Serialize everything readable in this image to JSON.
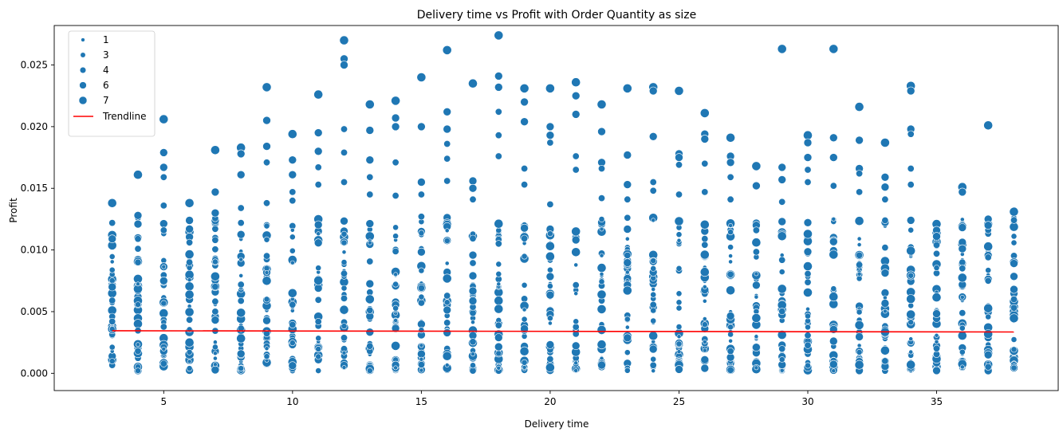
{
  "chart_data": {
    "type": "scatter",
    "title": "Delivery time vs Profit with Order Quantity as size",
    "xlabel": "Delivery time",
    "ylabel": "Profit",
    "xlim": [
      0.75,
      39.75
    ],
    "ylim": [
      -0.0014,
      0.0282
    ],
    "xticks": [
      5,
      10,
      15,
      20,
      25,
      30,
      35
    ],
    "xtick_labels": [
      "5",
      "10",
      "15",
      "20",
      "25",
      "30",
      "35"
    ],
    "yticks": [
      0.0,
      0.005,
      0.01,
      0.015,
      0.02,
      0.025
    ],
    "ytick_labels": [
      "0.000",
      "0.005",
      "0.010",
      "0.015",
      "0.020",
      "0.025"
    ],
    "grid": false,
    "legend_position": "upper-left",
    "point_color": "#1f77b4",
    "trend_color": "#ff0000",
    "size_legend": [
      "1",
      "3",
      "4",
      "6",
      "7"
    ],
    "trendline": {
      "name": "Trendline",
      "x": [
        3,
        38
      ],
      "y": [
        0.00345,
        0.00335
      ]
    },
    "columns": [
      {
        "x": 3,
        "ymax": 0.0138,
        "highlights": [
          0.0138,
          0.0109,
          0.007,
          0.0059,
          0.0046,
          0.0042
        ]
      },
      {
        "x": 4,
        "ymax": 0.0161,
        "highlights": [
          0.0161,
          0.0128,
          0.0121,
          0.0109,
          0.0101,
          0.009
        ]
      },
      {
        "x": 5,
        "ymax": 0.0206,
        "highlights": [
          0.0206,
          0.0179,
          0.0167,
          0.0159,
          0.0136,
          0.0116
        ]
      },
      {
        "x": 6,
        "ymax": 0.0138,
        "highlights": [
          0.0138,
          0.0124,
          0.0117,
          0.0106,
          0.009
        ]
      },
      {
        "x": 7,
        "ymax": 0.0181,
        "highlights": [
          0.0181,
          0.0147,
          0.013,
          0.0117,
          0.0108
        ]
      },
      {
        "x": 8,
        "ymax": 0.0183,
        "highlights": [
          0.0183,
          0.0178,
          0.0161,
          0.0134,
          0.0122
        ]
      },
      {
        "x": 9,
        "ymax": 0.0232,
        "highlights": [
          0.0232,
          0.0205,
          0.0184,
          0.0171,
          0.0138
        ]
      },
      {
        "x": 10,
        "ymax": 0.0194,
        "highlights": [
          0.0194,
          0.0173,
          0.0161,
          0.0147,
          0.014
        ]
      },
      {
        "x": 11,
        "ymax": 0.0226,
        "highlights": [
          0.0226,
          0.0195,
          0.018,
          0.0167,
          0.0153
        ]
      },
      {
        "x": 12,
        "ymax": 0.027,
        "highlights": [
          0.027,
          0.0255,
          0.025,
          0.0198,
          0.0179,
          0.0155
        ]
      },
      {
        "x": 13,
        "ymax": 0.0218,
        "highlights": [
          0.0218,
          0.0197,
          0.0173,
          0.0159,
          0.0145
        ]
      },
      {
        "x": 14,
        "ymax": 0.0221,
        "highlights": [
          0.0221,
          0.0207,
          0.02,
          0.0171,
          0.0144
        ]
      },
      {
        "x": 15,
        "ymax": 0.024,
        "highlights": [
          0.024,
          0.02,
          0.0155,
          0.0145,
          0.0127
        ]
      },
      {
        "x": 16,
        "ymax": 0.0262,
        "highlights": [
          0.0262,
          0.0212,
          0.0198,
          0.0186,
          0.0174,
          0.0156
        ]
      },
      {
        "x": 17,
        "ymax": 0.0235,
        "highlights": [
          0.0235,
          0.0156,
          0.015,
          0.0141
        ]
      },
      {
        "x": 18,
        "ymax": 0.0274,
        "highlights": [
          0.0274,
          0.0241,
          0.0232,
          0.0212,
          0.0193,
          0.0176
        ]
      },
      {
        "x": 19,
        "ymax": 0.0231,
        "highlights": [
          0.0231,
          0.022,
          0.0204,
          0.0166,
          0.0153
        ]
      },
      {
        "x": 20,
        "ymax": 0.0231,
        "highlights": [
          0.0231,
          0.02,
          0.0193,
          0.0187,
          0.0137
        ]
      },
      {
        "x": 21,
        "ymax": 0.0236,
        "highlights": [
          0.0236,
          0.0225,
          0.021,
          0.0176,
          0.0165
        ]
      },
      {
        "x": 22,
        "ymax": 0.0218,
        "highlights": [
          0.0218,
          0.0196,
          0.0171,
          0.0166,
          0.0142
        ]
      },
      {
        "x": 23,
        "ymax": 0.0231,
        "highlights": [
          0.0231,
          0.0177,
          0.0153,
          0.0141
        ]
      },
      {
        "x": 24,
        "ymax": 0.0232,
        "highlights": [
          0.0232,
          0.0229,
          0.0192,
          0.0155,
          0.0148
        ]
      },
      {
        "x": 25,
        "ymax": 0.0229,
        "highlights": [
          0.0229,
          0.0178,
          0.0175,
          0.0169,
          0.0145
        ]
      },
      {
        "x": 26,
        "ymax": 0.0211,
        "highlights": [
          0.0211,
          0.0194,
          0.019,
          0.017,
          0.0147
        ]
      },
      {
        "x": 27,
        "ymax": 0.0191,
        "highlights": [
          0.0191,
          0.0176,
          0.0171,
          0.0159,
          0.0141
        ]
      },
      {
        "x": 28,
        "ymax": 0.0168,
        "highlights": [
          0.0168,
          0.0152,
          0.012,
          0.0116
        ]
      },
      {
        "x": 29,
        "ymax": 0.0263,
        "highlights": [
          0.0263,
          0.0167,
          0.0157,
          0.0139
        ]
      },
      {
        "x": 30,
        "ymax": 0.0193,
        "highlights": [
          0.0193,
          0.0187,
          0.0175,
          0.0165,
          0.0155
        ]
      },
      {
        "x": 31,
        "ymax": 0.0263,
        "highlights": [
          0.0263,
          0.0191,
          0.0175,
          0.0152
        ]
      },
      {
        "x": 32,
        "ymax": 0.0216,
        "highlights": [
          0.0216,
          0.0189,
          0.0166,
          0.0162,
          0.0147
        ]
      },
      {
        "x": 33,
        "ymax": 0.0187,
        "highlights": [
          0.0187,
          0.0159,
          0.0151,
          0.0141,
          0.0124
        ]
      },
      {
        "x": 34,
        "ymax": 0.0233,
        "highlights": [
          0.0233,
          0.0229,
          0.0198,
          0.0194,
          0.0166,
          0.0153
        ]
      },
      {
        "x": 35,
        "ymax": 0.0121,
        "highlights": [
          0.0121,
          0.0116,
          0.0111,
          0.0104,
          0.0097
        ]
      },
      {
        "x": 36,
        "ymax": 0.0151,
        "highlights": [
          0.0151,
          0.0147,
          0.0101,
          0.009,
          0.0085
        ]
      },
      {
        "x": 37,
        "ymax": 0.0201,
        "highlights": [
          0.0201,
          0.0125,
          0.012,
          0.0094,
          0.0075
        ]
      },
      {
        "x": 38,
        "ymax": 0.0131,
        "highlights": [
          0.0131,
          0.0089,
          0.0068,
          0.006,
          0.0053
        ]
      }
    ]
  }
}
